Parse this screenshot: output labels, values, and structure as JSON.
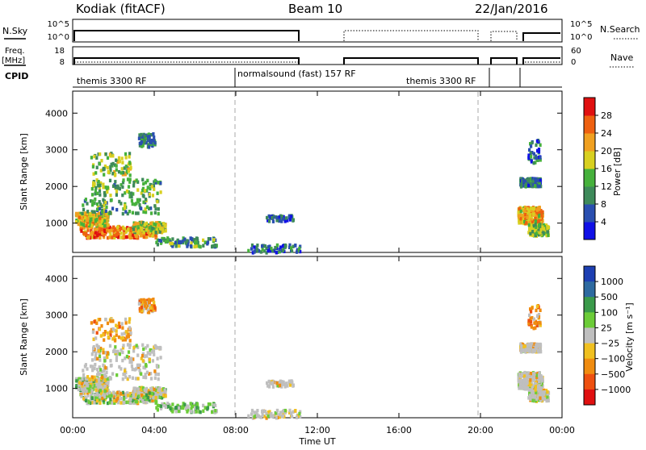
{
  "header": {
    "station": "Kodiak (fitACF)",
    "beam": "Beam 10",
    "date": "22/Jan/2016"
  },
  "panels": {
    "nsky_label": "N.Sky",
    "nsky_ticks": [
      "10^5",
      "10^0"
    ],
    "nsearch_label": "N.Search",
    "nsearch_ticks": [
      "10^5",
      "10^0"
    ],
    "freq_label_1": "Freq.",
    "freq_label_2": "[MHz]",
    "freq_ticks": [
      "18",
      "8"
    ],
    "nave_label": "Nave",
    "nave_ticks": [
      "60",
      "0"
    ],
    "cpid_label": "CPID",
    "cpid_segments": [
      "themis 3300 RF",
      "normalsound (fast) 157 RF",
      "themis 3300 RF"
    ]
  },
  "chart_data": [
    {
      "type": "heatmap",
      "name": "power",
      "ylabel": "Slant Range [km]",
      "yticks": [
        "1000",
        "2000",
        "3000",
        "4000"
      ],
      "ylim": [
        200,
        4600
      ],
      "xlim": [
        0,
        24
      ],
      "colorbar_label": "Power [dB]",
      "colorbar_ticks": [
        "4",
        "8",
        "12",
        "16",
        "20",
        "24",
        "28"
      ],
      "colors": [
        "#1010e6",
        "#2a4fb0",
        "#3e8a5a",
        "#46b13c",
        "#d8d020",
        "#f0a020",
        "#ee6010",
        "#e01010"
      ]
    },
    {
      "type": "heatmap",
      "name": "velocity",
      "ylabel": "Slant Range [km]",
      "yticks": [
        "1000",
        "2000",
        "3000",
        "4000"
      ],
      "ylim": [
        200,
        4600
      ],
      "xlim": [
        0,
        24
      ],
      "colorbar_label": "Velocity [m s⁻¹]",
      "colorbar_ticks": [
        "1000",
        "500",
        "100",
        "25",
        "−25",
        "−100",
        "−500",
        "−1000"
      ],
      "colors": [
        "#1d3fb2",
        "#2e6aa0",
        "#3a9a4a",
        "#6ccc38",
        "#bfbfbf",
        "#f0c020",
        "#f08c10",
        "#ee5010",
        "#e01010"
      ]
    }
  ],
  "xaxis": {
    "label": "Time UT",
    "ticks": [
      "00:00",
      "04:00",
      "08:00",
      "12:00",
      "16:00",
      "20:00",
      "00:00"
    ]
  }
}
